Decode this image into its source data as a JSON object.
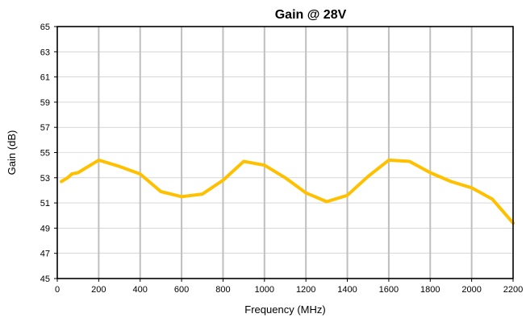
{
  "chart_data": {
    "type": "line",
    "title": "Gain @ 28V",
    "xlabel": "Frequency (MHz)",
    "ylabel": "Gain (dB)",
    "xlim": [
      0,
      2200
    ],
    "ylim": [
      45,
      65
    ],
    "x_ticks": [
      0,
      200,
      400,
      600,
      800,
      1000,
      1200,
      1400,
      1600,
      1800,
      2000,
      2200
    ],
    "y_ticks": [
      45,
      47,
      49,
      51,
      53,
      55,
      57,
      59,
      61,
      63,
      65
    ],
    "grid": "vertical major gridlines",
    "legend": "none",
    "series": [
      {
        "color": "#FFC000",
        "x": [
          20,
          50,
          70,
          100,
          200,
          300,
          400,
          500,
          600,
          700,
          800,
          900,
          1000,
          1100,
          1200,
          1300,
          1400,
          1500,
          1600,
          1700,
          1800,
          1900,
          2000,
          2100,
          2200
        ],
        "y": [
          52.7,
          53.0,
          53.3,
          53.4,
          54.4,
          53.9,
          53.3,
          51.9,
          51.5,
          51.7,
          52.8,
          54.3,
          54.0,
          53.0,
          51.8,
          51.1,
          51.6,
          53.1,
          54.4,
          54.3,
          53.4,
          52.7,
          52.2,
          51.3,
          49.4
        ]
      }
    ]
  }
}
